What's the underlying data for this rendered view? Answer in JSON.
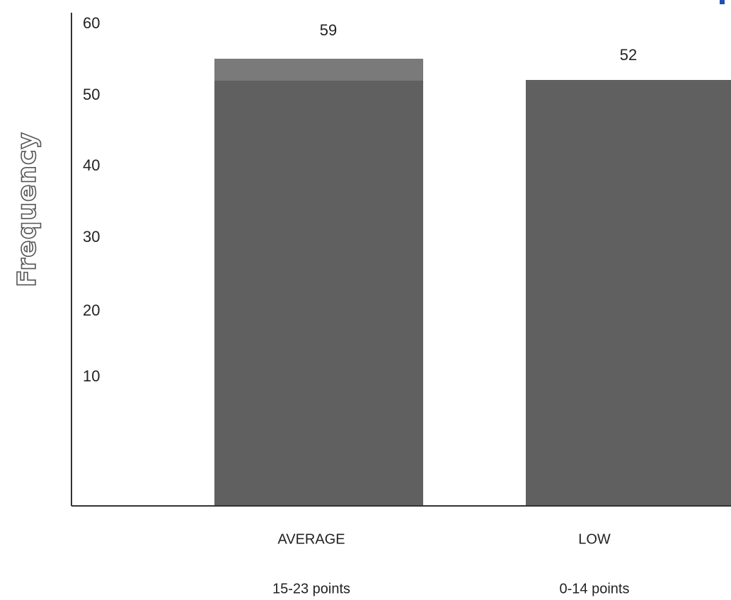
{
  "chart_data": {
    "type": "bar",
    "categories": [
      "AVERAGE",
      "LOW"
    ],
    "category_sublabels": [
      "15-23 points",
      "0-14 points"
    ],
    "values": [
      59,
      52
    ],
    "data_labels": [
      "59",
      "52"
    ],
    "ylabel": "Frequency",
    "yticks": [
      10,
      20,
      30,
      40,
      50,
      60
    ],
    "ylim": [
      0,
      60
    ],
    "grid": false,
    "colors": {
      "bar": "#606060",
      "bar_top": "#7a7a7a",
      "axis": "#333333",
      "accent": "#1f4fb0"
    }
  }
}
